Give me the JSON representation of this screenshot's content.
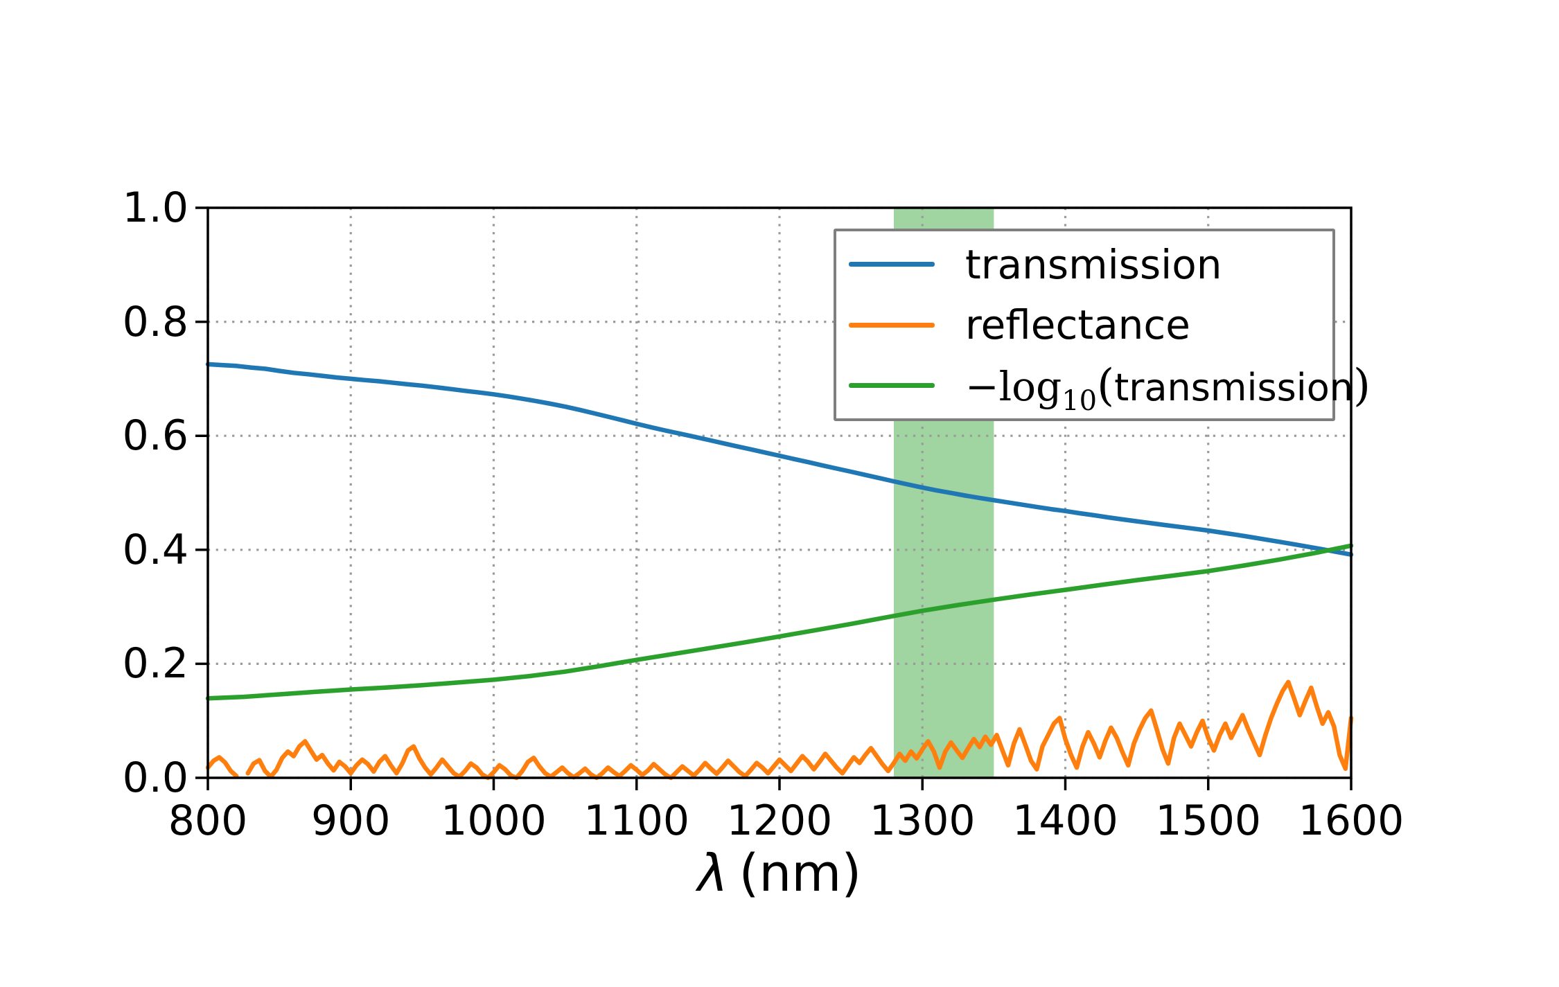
{
  "chart_data": {
    "type": "line",
    "title": "",
    "xlabel": "λ (nm)",
    "xlabel_parts": {
      "lambda": "λ",
      "unit": "(nm)"
    },
    "ylabel": "",
    "xlim": [
      800,
      1600
    ],
    "ylim": [
      0.0,
      1.0
    ],
    "xticks": [
      800,
      900,
      1000,
      1100,
      1200,
      1300,
      1400,
      1500,
      1600
    ],
    "xtick_labels": [
      "800",
      "900",
      "1000",
      "1100",
      "1200",
      "1300",
      "1400",
      "1500",
      "1600"
    ],
    "yticks": [
      0.0,
      0.2,
      0.4,
      0.6,
      0.8,
      1.0
    ],
    "ytick_labels": [
      "0.0",
      "0.2",
      "0.4",
      "0.6",
      "0.8",
      "1.0"
    ],
    "grid": {
      "visible": true,
      "style": "dotted",
      "color": "#9a9a9a"
    },
    "axis_color": "#000000",
    "band": {
      "x_start": 1280,
      "x_end": 1350,
      "color": "#2ca02c",
      "alpha": 0.45
    },
    "legend": {
      "position": "upper right",
      "border_color": "#7f7f7f",
      "entries": [
        {
          "key": "transmission",
          "label": "transmission",
          "color": "#1f77b4"
        },
        {
          "key": "reflectance",
          "label": "reflectance",
          "color": "#ff7f0e"
        },
        {
          "key": "neg-log10-transmission",
          "label": "−log₁₀(transmission)",
          "color": "#2ca02c",
          "math": {
            "prefix": "−log",
            "sub": "10",
            "open": "(",
            "text": "transmission",
            "close": ")"
          }
        }
      ]
    },
    "series": [
      {
        "key": "transmission",
        "name": "transmission",
        "color": "#1f77b4",
        "x_start": 800,
        "x_step": 10,
        "values": [
          0.7255,
          0.724,
          0.7226,
          0.7198,
          0.7176,
          0.7138,
          0.7104,
          0.708,
          0.7052,
          0.7023,
          0.7,
          0.6977,
          0.6956,
          0.693,
          0.6903,
          0.688,
          0.6851,
          0.682,
          0.6789,
          0.676,
          0.6728,
          0.6691,
          0.665,
          0.6607,
          0.6561,
          0.6512,
          0.6456,
          0.6396,
          0.6335,
          0.6273,
          0.621,
          0.6151,
          0.6094,
          0.604,
          0.5985,
          0.5929,
          0.5872,
          0.5817,
          0.5762,
          0.5706,
          0.565,
          0.5593,
          0.5538,
          0.5481,
          0.5425,
          0.537,
          0.5313,
          0.5257,
          0.5201,
          0.5146,
          0.5092,
          0.5041,
          0.4997,
          0.4952,
          0.491,
          0.487,
          0.4831,
          0.4791,
          0.4752,
          0.4713,
          0.468,
          0.4642,
          0.4606,
          0.4569,
          0.4533,
          0.45,
          0.4467,
          0.4434,
          0.4402,
          0.437,
          0.4338,
          0.43,
          0.4262,
          0.4222,
          0.4181,
          0.414,
          0.4097,
          0.4054,
          0.4009,
          0.3962,
          0.3916
        ]
      },
      {
        "key": "reflectance",
        "name": "reflectance",
        "color": "#ff7f0e",
        "x_start": 800,
        "x_step": 4,
        "values": [
          0.018,
          0.03,
          0.036,
          0.027,
          0.012,
          0.003,
          null,
          0.008,
          0.025,
          0.031,
          0.012,
          0.002,
          0.014,
          0.035,
          0.046,
          0.038,
          0.055,
          0.064,
          0.048,
          0.032,
          0.04,
          0.025,
          0.013,
          0.028,
          0.02,
          0.008,
          0.022,
          0.032,
          0.024,
          0.011,
          0.028,
          0.038,
          0.022,
          0.008,
          0.025,
          0.048,
          0.055,
          0.034,
          0.018,
          0.006,
          0.018,
          0.032,
          0.02,
          0.008,
          0.002,
          0.012,
          0.025,
          0.018,
          0.006,
          0.0,
          0.01,
          0.022,
          0.015,
          0.004,
          0.0,
          0.012,
          0.028,
          0.035,
          0.02,
          0.008,
          0.002,
          0.01,
          0.018,
          0.008,
          0.001,
          0.008,
          0.016,
          0.006,
          0.0,
          0.008,
          0.018,
          0.01,
          0.003,
          0.012,
          0.022,
          0.014,
          0.005,
          0.013,
          0.024,
          0.015,
          0.006,
          0.0,
          0.01,
          0.02,
          0.012,
          0.004,
          0.014,
          0.026,
          0.016,
          0.007,
          0.018,
          0.03,
          0.02,
          0.01,
          0.003,
          0.014,
          0.026,
          0.018,
          0.008,
          0.02,
          0.032,
          0.022,
          0.012,
          0.025,
          0.038,
          0.028,
          0.015,
          0.028,
          0.042,
          0.03,
          0.018,
          0.008,
          0.022,
          0.036,
          0.026,
          0.04,
          0.052,
          0.038,
          0.024,
          0.012,
          0.026,
          0.042,
          0.03,
          0.046,
          0.034,
          0.05,
          0.064,
          0.046,
          0.018,
          0.046,
          0.062,
          0.048,
          0.035,
          0.052,
          0.068,
          0.054,
          0.072,
          0.058,
          0.075,
          0.048,
          0.022,
          0.06,
          0.085,
          0.058,
          0.03,
          0.015,
          0.055,
          0.075,
          0.095,
          0.105,
          0.068,
          0.04,
          0.018,
          0.055,
          0.08,
          0.06,
          0.036,
          0.065,
          0.088,
          0.07,
          0.045,
          0.022,
          0.06,
          0.085,
          0.105,
          0.118,
          0.085,
          0.05,
          0.025,
          0.07,
          0.095,
          0.075,
          0.055,
          0.08,
          0.1,
          0.07,
          0.048,
          0.075,
          0.095,
          0.07,
          0.09,
          0.11,
          0.085,
          0.062,
          0.04,
          0.075,
          0.105,
          0.13,
          0.152,
          0.168,
          0.14,
          0.11,
          0.135,
          0.158,
          0.125,
          0.095,
          0.115,
          0.09,
          0.04,
          0.016,
          0.105
        ]
      },
      {
        "key": "neg-log10-transmission",
        "name": "-log10(transmission)",
        "color": "#2ca02c",
        "x_start": 800,
        "x_step": 25,
        "values": [
          0.1394,
          0.142,
          0.1464,
          0.1508,
          0.1549,
          0.1585,
          0.1624,
          0.1672,
          0.1721,
          0.1785,
          0.1863,
          0.1963,
          0.2069,
          0.217,
          0.2271,
          0.2373,
          0.248,
          0.2589,
          0.27,
          0.2816,
          0.2931,
          0.3032,
          0.3125,
          0.3214,
          0.3298,
          0.3384,
          0.3468,
          0.3547,
          0.3627,
          0.3724,
          0.383,
          0.3945,
          0.4073
        ]
      }
    ]
  }
}
